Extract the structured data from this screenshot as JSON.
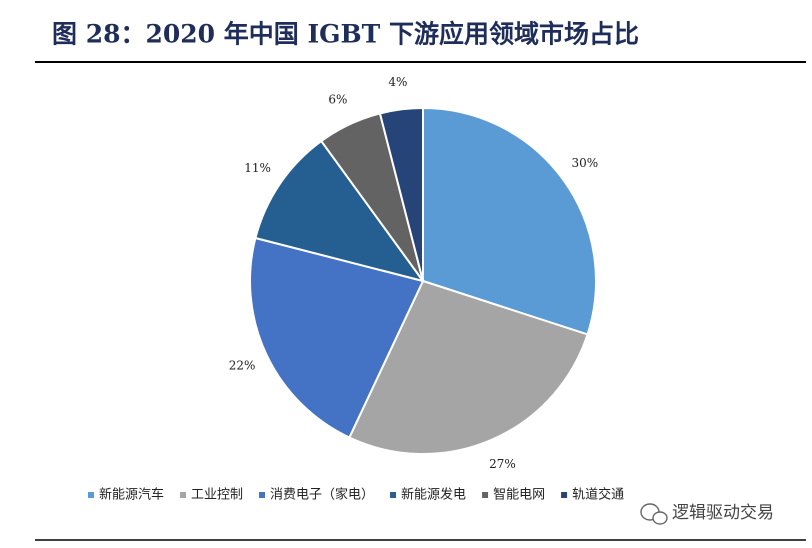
{
  "chart_data": {
    "type": "pie",
    "title": "图 28：2020 年中国 IGBT 下游应用领域市场占比",
    "categories": [
      "新能源汽车",
      "工业控制",
      "消费电子（家电）",
      "新能源发电",
      "智能电网",
      "轨道交通"
    ],
    "values": [
      30,
      27,
      22,
      11,
      6,
      4
    ],
    "value_labels": [
      "30%",
      "27%",
      "22%",
      "11%",
      "6%",
      "4%"
    ],
    "colors": [
      "#5b9bd5",
      "#a5a5a5",
      "#4472c4",
      "#255e91",
      "#636363",
      "#264478"
    ],
    "legend": "bottom",
    "watermark": "逻辑驱动交易"
  }
}
